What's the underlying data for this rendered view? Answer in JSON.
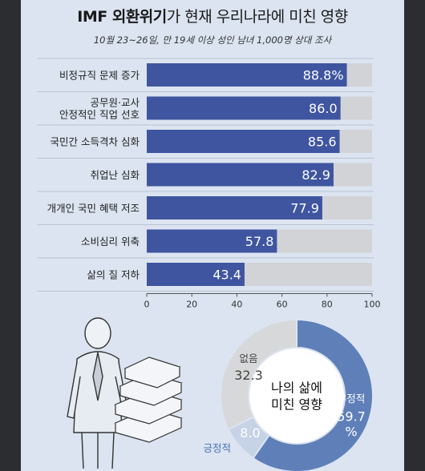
{
  "title": {
    "bold": "IMF 외환위기",
    "rest": "가 현재 우리나라에 미친 영향"
  },
  "subtitle": "10월 23~26일, 만 19세 이상 성인 남녀 1,000명 상대 조사",
  "colors": {
    "bar": "#3f55a0",
    "track": "#d2d3d6",
    "donut_main": "#5f7fb8",
    "donut_neg": "#c6d2e6",
    "donut_gray": "#d7d8da"
  },
  "chart_data": [
    {
      "type": "bar",
      "orientation": "horizontal",
      "categories": [
        "비정규직 문제 증가",
        "공무원·교사\n안정적인 직업 선호",
        "국민간 소득격차 심화",
        "취업난 심화",
        "개개인 국민 혜택 저조",
        "소비심리 위축",
        "삶의 질 저하"
      ],
      "values": [
        88.8,
        86.0,
        85.6,
        82.9,
        77.9,
        57.8,
        43.4
      ],
      "value_labels": [
        "88.8%",
        "86.0",
        "85.6",
        "82.9",
        "77.9",
        "57.8",
        "43.4"
      ],
      "xlim": [
        0,
        100
      ],
      "xticks": [
        "0",
        "20",
        "40",
        "60",
        "80",
        "100"
      ],
      "grid": false
    },
    {
      "type": "pie",
      "center_label": "나의 삶에\n미친 영향",
      "slices": [
        {
          "label": "부정적",
          "value": 59.7,
          "value_label": "59.7\n%"
        },
        {
          "label": "긍정적",
          "value": 8.0,
          "value_label": "8.0"
        },
        {
          "label": "없음",
          "value": 32.3,
          "value_label": "32.3"
        }
      ]
    }
  ]
}
